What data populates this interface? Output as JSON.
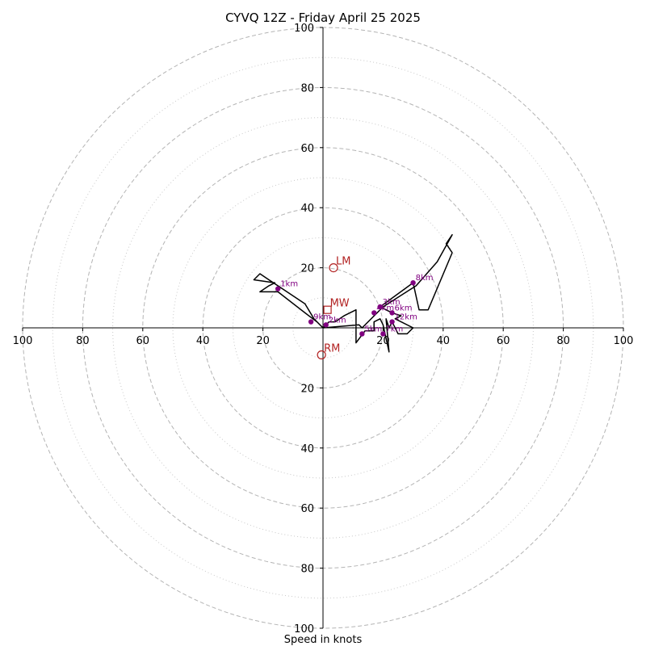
{
  "chart_data": {
    "type": "hodograph",
    "title": "CYVQ 12Z - Friday April 25 2025",
    "xlabel": "Speed in knots",
    "ylabel": "",
    "xlim": [
      -100,
      100
    ],
    "ylim": [
      -100,
      100
    ],
    "rings_major": [
      20,
      40,
      60,
      80,
      100
    ],
    "rings_minor": [
      10,
      30,
      50,
      70,
      90
    ],
    "x_ticks": [
      {
        "value": -100,
        "label": "100"
      },
      {
        "value": -80,
        "label": "80"
      },
      {
        "value": -60,
        "label": "60"
      },
      {
        "value": -40,
        "label": "40"
      },
      {
        "value": -20,
        "label": "20"
      },
      {
        "value": 20,
        "label": "20"
      },
      {
        "value": 40,
        "label": "40"
      },
      {
        "value": 60,
        "label": "60"
      },
      {
        "value": 80,
        "label": "80"
      },
      {
        "value": 100,
        "label": "100"
      }
    ],
    "y_ticks": [
      {
        "value": 100,
        "label": "100"
      },
      {
        "value": 80,
        "label": "80"
      },
      {
        "value": 60,
        "label": "60"
      },
      {
        "value": 40,
        "label": "40"
      },
      {
        "value": 20,
        "label": "20"
      },
      {
        "value": -20,
        "label": "20"
      },
      {
        "value": -40,
        "label": "40"
      },
      {
        "value": -60,
        "label": "60"
      },
      {
        "value": -80,
        "label": "80"
      },
      {
        "value": -100,
        "label": "100"
      }
    ],
    "hodograph_line": {
      "color": "#000000",
      "points": [
        [
          0,
          0
        ],
        [
          2,
          2
        ],
        [
          4,
          2
        ],
        [
          7,
          4
        ],
        [
          11,
          6
        ],
        [
          11,
          -5
        ],
        [
          14,
          -1
        ],
        [
          17,
          -1
        ],
        [
          17,
          2
        ],
        [
          19,
          3
        ],
        [
          20,
          1
        ],
        [
          22,
          -8
        ],
        [
          21,
          3
        ],
        [
          22,
          0
        ],
        [
          23,
          2
        ],
        [
          25,
          -2
        ],
        [
          27,
          -2
        ],
        [
          28,
          -2
        ],
        [
          30,
          0
        ],
        [
          24,
          3
        ],
        [
          26,
          4
        ],
        [
          23,
          5
        ],
        [
          19,
          7
        ],
        [
          30,
          15
        ],
        [
          32,
          6
        ],
        [
          35,
          6
        ],
        [
          43,
          25
        ],
        [
          41,
          28
        ],
        [
          43,
          31
        ],
        [
          38,
          22
        ],
        [
          31,
          14
        ],
        [
          20,
          7
        ],
        [
          13,
          0
        ],
        [
          12,
          1
        ],
        [
          0,
          0
        ],
        [
          -3,
          3
        ],
        [
          -6,
          8
        ],
        [
          -12,
          12
        ],
        [
          -18,
          16
        ],
        [
          -21,
          18
        ],
        [
          -23,
          16
        ],
        [
          -16,
          15
        ],
        [
          -18,
          14
        ],
        [
          -21,
          12
        ],
        [
          -15,
          12
        ],
        [
          -6,
          5
        ],
        [
          -2,
          2
        ],
        [
          0,
          0
        ]
      ]
    },
    "height_markers": {
      "color": "#800080",
      "points": [
        {
          "label": "1km",
          "u": -15,
          "v": 13
        },
        {
          "label": "2km",
          "u": 1,
          "v": 1
        },
        {
          "label": "3km",
          "u": 19,
          "v": 7
        },
        {
          "label": "4km",
          "u": 17,
          "v": 5
        },
        {
          "label": "5km",
          "u": 13,
          "v": -2
        },
        {
          "label": "6km",
          "u": 23,
          "v": 5
        },
        {
          "label": "7km",
          "u": 20,
          "v": -2
        },
        {
          "label": "8km",
          "u": 30,
          "v": 15
        },
        {
          "label": "9km",
          "u": -4,
          "v": 2
        },
        {
          "label": "12km",
          "u": 23,
          "v": 2
        }
      ]
    },
    "motion_markers": {
      "color": "#b22222",
      "points": [
        {
          "label": "LM",
          "u": 3.5,
          "v": 20,
          "shape": "circle"
        },
        {
          "label": "MW",
          "u": 1.5,
          "v": 6,
          "shape": "square"
        },
        {
          "label": "RM",
          "u": -0.5,
          "v": -9,
          "shape": "circle"
        }
      ]
    }
  }
}
